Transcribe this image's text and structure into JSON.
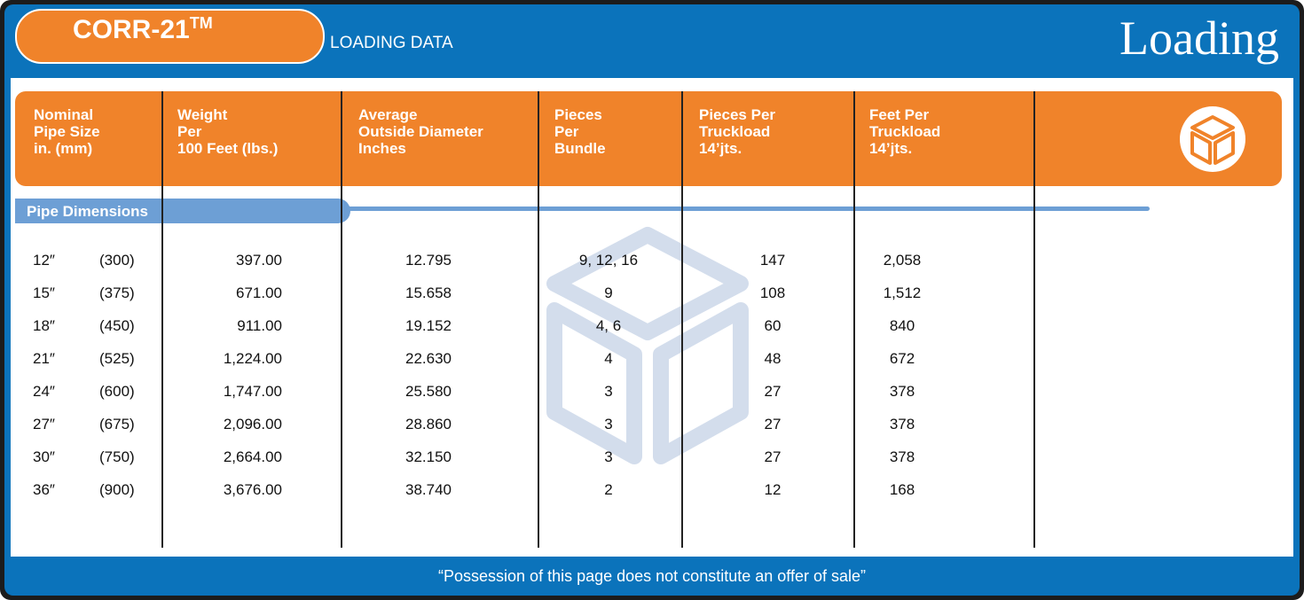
{
  "header": {
    "product": "CORR-21",
    "trademark": "TM",
    "subtitle": "LOADING DATA",
    "section": "Loading"
  },
  "table": {
    "columns": [
      [
        "Nominal",
        "Pipe Size",
        "in.  (mm)"
      ],
      [
        "Weight",
        "Per",
        "100 Feet (lbs.)"
      ],
      [
        "Average",
        "Outside Diameter",
        "Inches"
      ],
      [
        "Pieces",
        "Per",
        "Bundle"
      ],
      [
        "Pieces Per",
        "Truckload",
        "14’jts."
      ],
      [
        "Feet Per",
        "Truckload",
        "14’jts."
      ]
    ],
    "group_label": "Pipe Dimensions",
    "rows": [
      [
        "12″",
        "(300)",
        "397.00",
        "12.795",
        "9, 12, 16",
        "147",
        "2,058"
      ],
      [
        "15″",
        "(375)",
        "671.00",
        "15.658",
        "9",
        "108",
        "1,512"
      ],
      [
        "18″",
        "(450)",
        "911.00",
        "19.152",
        "4, 6",
        "60",
        "840"
      ],
      [
        "21″",
        "(525)",
        "1,224.00",
        "22.630",
        "4",
        "48",
        "672"
      ],
      [
        "24″",
        "(600)",
        "1,747.00",
        "25.580",
        "3",
        "27",
        "378"
      ],
      [
        "27″",
        "(675)",
        "2,096.00",
        "28.860",
        "3",
        "27",
        "378"
      ],
      [
        "30″",
        "(750)",
        "2,664.00",
        "32.150",
        "3",
        "27",
        "378"
      ],
      [
        "36″",
        "(900)",
        "3,676.00",
        "38.740",
        "2",
        "12",
        "168"
      ]
    ]
  },
  "footer": "“Possession of this page does not constitute an offer of sale”"
}
